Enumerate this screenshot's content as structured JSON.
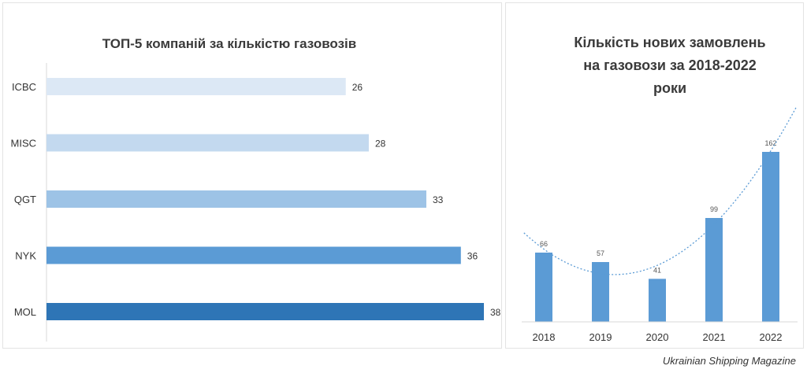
{
  "chart_data": [
    {
      "type": "bar",
      "orientation": "horizontal",
      "title": "ТОП-5 компаній за кількістю газовозів",
      "categories": [
        "ICBC",
        "MISC",
        "QGT",
        "NYK",
        "MOL"
      ],
      "values": [
        26,
        28,
        33,
        36,
        38
      ],
      "colors": [
        "#dce8f5",
        "#c3d9ef",
        "#9dc3e6",
        "#5b9bd5",
        "#2e75b6"
      ],
      "data_labels": true,
      "xlim": [
        0,
        38
      ]
    },
    {
      "type": "bar",
      "title_lines": [
        "Кількість нових замовлень",
        "на газовози за 2018-2022",
        "роки"
      ],
      "categories": [
        "2018",
        "2019",
        "2020",
        "2021",
        "2022"
      ],
      "values": [
        66,
        57,
        41,
        99,
        162
      ],
      "color": "#5b9bd5",
      "trendline": "polynomial",
      "trendline_color": "#5b9bd5",
      "data_labels": true,
      "ylim": [
        0,
        162
      ]
    }
  ],
  "source": "Ukrainian Shipping Magazine"
}
